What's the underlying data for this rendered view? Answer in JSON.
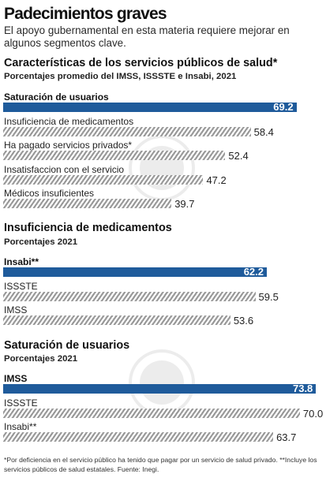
{
  "header": {
    "title": "Padecimientos graves",
    "subtitle": "El apoyo gubernamental en esta materia requiere mejorar en algunos segmentos clave."
  },
  "colors": {
    "highlight": "#1f5b9b",
    "hatch": "#9a9a9a"
  },
  "chart_data": [
    {
      "type": "bar",
      "orientation": "horizontal",
      "title": "Características de los servicios públicos de salud*",
      "subtitle": "Porcentajes promedio del IMSS, ISSSTE e Insabi, 2021",
      "categories": [
        "Saturación de usuarios",
        "Insuficiencia de medicamentos",
        "Ha pagado servicios privados*",
        "Insatisfaccion con el servicio",
        "Médicos insuficientes"
      ],
      "values": [
        69.2,
        58.4,
        52.4,
        47.2,
        39.7
      ],
      "value_labels": [
        "69.2",
        "58.4",
        "52.4",
        "47.2",
        "39.7"
      ],
      "highlight_index": 0
    },
    {
      "type": "bar",
      "orientation": "horizontal",
      "title": "Insuficiencia de medicamentos",
      "subtitle": "Porcentajes 2021",
      "categories": [
        "Insabi**",
        "ISSSTE",
        "IMSS"
      ],
      "values": [
        62.2,
        59.5,
        53.6
      ],
      "value_labels": [
        "62.2",
        "59.5",
        "53.6"
      ],
      "highlight_index": 0
    },
    {
      "type": "bar",
      "orientation": "horizontal",
      "title": "Saturación de usuarios",
      "subtitle": "Porcentajes 2021",
      "categories": [
        "IMSS",
        "ISSSTE",
        "Insabi**"
      ],
      "values": [
        73.8,
        70.0,
        63.7
      ],
      "value_labels": [
        "73.8",
        "70.0",
        "63.7"
      ],
      "highlight_index": 0
    }
  ],
  "footnote": "*Por deficiencia en el servicio público ha tenido que pagar por un servicio de salud privado. **Incluye los servicios públicos de salud estatales. Fuente: Inegi."
}
